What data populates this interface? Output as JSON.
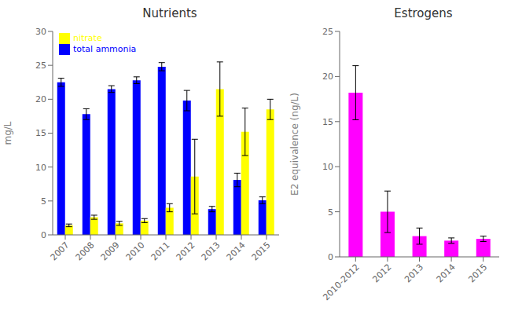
{
  "chart_data": [
    {
      "type": "bar",
      "title": "Nutrients",
      "y_label": "mg/L",
      "categories": [
        "2007",
        "2008",
        "2009",
        "2010",
        "2011",
        "2012",
        "2013",
        "2014",
        "2015"
      ],
      "series": [
        {
          "name": "total ammonia",
          "color": "#0000FF",
          "values": [
            22.5,
            17.8,
            21.5,
            22.8,
            24.8,
            19.8,
            3.8,
            8.1,
            5.1
          ],
          "errors": [
            0.6,
            0.8,
            0.5,
            0.5,
            0.6,
            1.5,
            0.4,
            1.0,
            0.5
          ]
        },
        {
          "name": "nitrate",
          "color": "#FFFF00",
          "values": [
            1.4,
            2.6,
            1.7,
            2.1,
            4.0,
            8.6,
            21.5,
            15.2,
            18.5
          ],
          "errors": [
            0.2,
            0.3,
            0.3,
            0.3,
            0.6,
            5.5,
            4.0,
            3.5,
            1.5
          ]
        }
      ],
      "ylim": [
        0,
        30
      ],
      "yticks": [
        0,
        5,
        10,
        15,
        20,
        25,
        30
      ],
      "legend": "upper left",
      "grid": false
    },
    {
      "type": "bar",
      "title": "Estrogens",
      "y_label": "E2 equivalence (ng/L)",
      "categories": [
        "2010-2012",
        "2012",
        "2013",
        "2014",
        "2015"
      ],
      "values": [
        18.2,
        5.0,
        2.3,
        1.8,
        2.0
      ],
      "errors": [
        3.0,
        2.3,
        0.9,
        0.3,
        0.3
      ],
      "color": "#FF00FF",
      "ylim": [
        0,
        25
      ],
      "yticks": [
        0,
        5,
        10,
        15,
        20,
        25
      ],
      "grid": false
    }
  ]
}
